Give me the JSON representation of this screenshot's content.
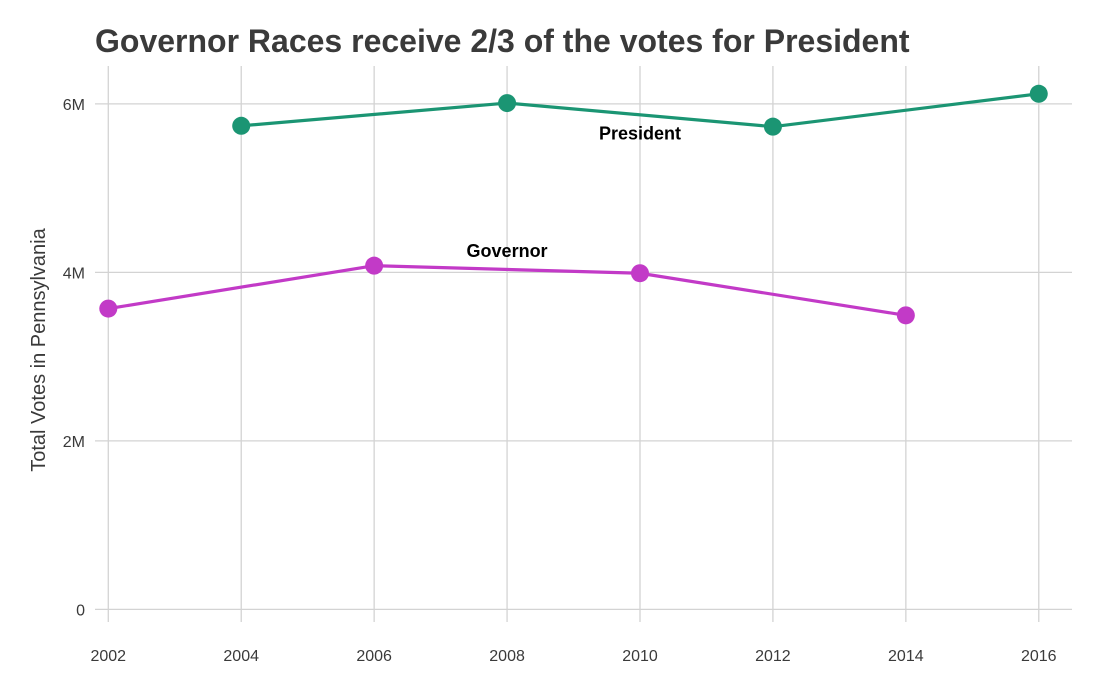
{
  "chart_data": {
    "type": "line",
    "title": "Governor Races receive 2/3 of the votes for President",
    "xlabel": "",
    "ylabel": "Total Votes in Pennsylvania",
    "x_ticks": [
      "2002",
      "2004",
      "2006",
      "2008",
      "2010",
      "2012",
      "2014",
      "2016"
    ],
    "y_ticks": [
      {
        "value": 0,
        "label": "0"
      },
      {
        "value": 2000000,
        "label": "2M"
      },
      {
        "value": 4000000,
        "label": "4M"
      },
      {
        "value": 6000000,
        "label": "6M"
      }
    ],
    "xlim": [
      2001.8,
      2016.5
    ],
    "ylim": [
      -150000,
      6450000
    ],
    "grid": true,
    "legend": "none",
    "series": [
      {
        "name": "President",
        "color": "#1b9573",
        "label_at": {
          "x": 2010,
          "y": 5580000
        },
        "x": [
          2004,
          2008,
          2012,
          2016
        ],
        "values": [
          5740000,
          6010000,
          5730000,
          6120000
        ]
      },
      {
        "name": "Governor",
        "color": "#c23ac7",
        "label_at": {
          "x": 2008,
          "y": 4180000
        },
        "x": [
          2002,
          2006,
          2010,
          2014
        ],
        "values": [
          3570000,
          4080000,
          3990000,
          3490000
        ]
      }
    ]
  }
}
